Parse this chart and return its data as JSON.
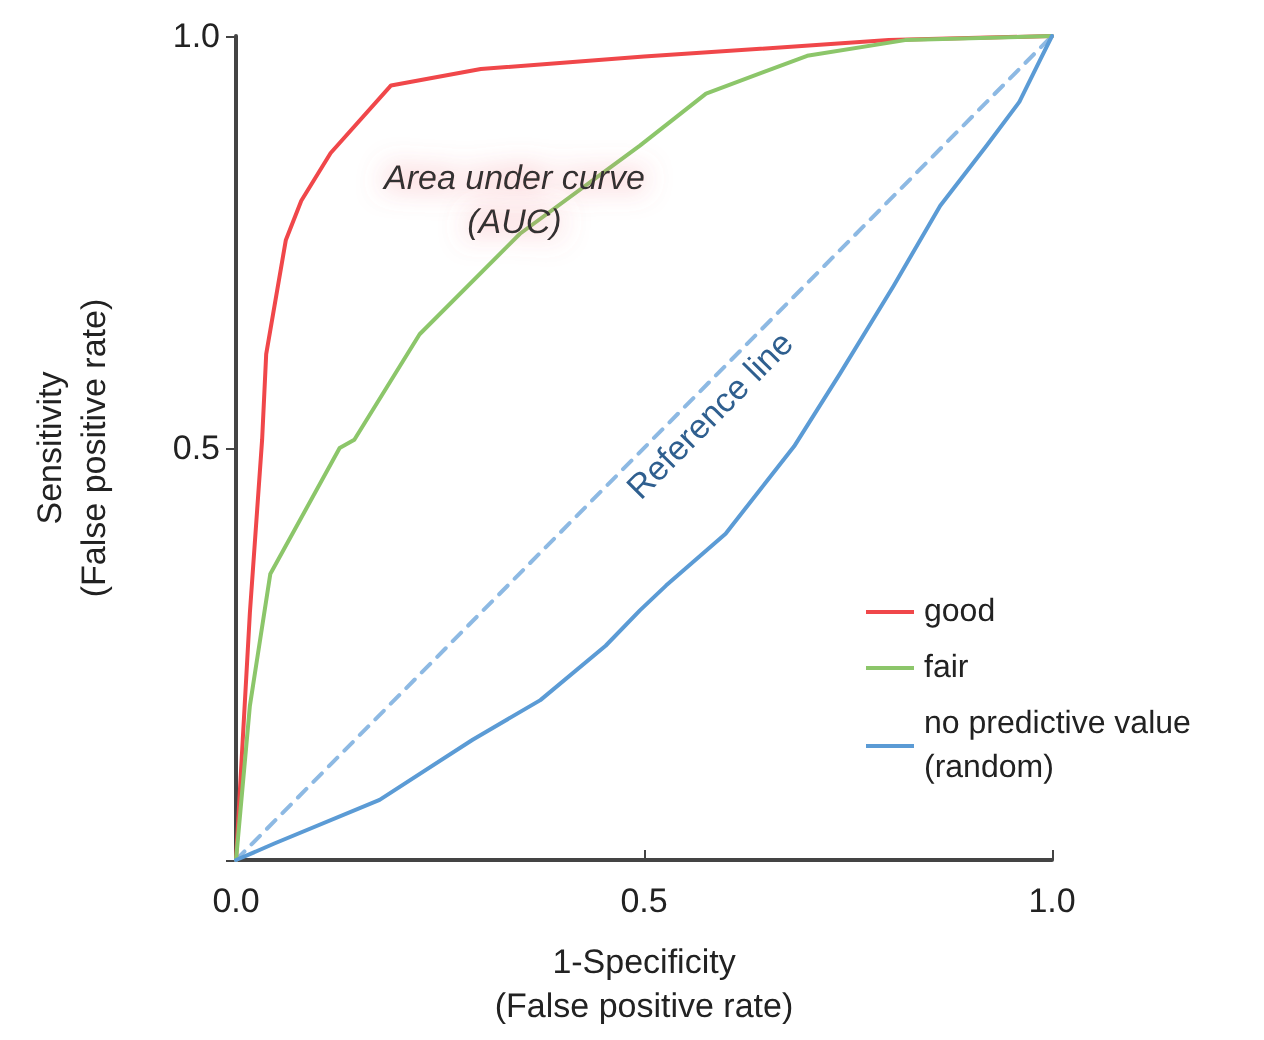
{
  "chart_data": {
    "type": "line",
    "xlabel": "1-Specificity\n(False positive rate)",
    "ylabel": "Sensitivity\n(False positive rate)",
    "xlim": [
      0,
      1
    ],
    "ylim": [
      0,
      1
    ],
    "xticks": [
      {
        "value": 0,
        "label": "0.0"
      },
      0.5,
      {
        "value": 1,
        "label": "1.0"
      }
    ],
    "yticks": [
      {
        "value": 0,
        "label": null
      },
      0.5,
      {
        "value": 1,
        "label": "1.0"
      }
    ],
    "marker": "none",
    "legend": "bottom right",
    "grid": false,
    "annotations": [
      "Area under curve\n(AUC)",
      "Reference line"
    ],
    "series": [
      {
        "name": "good",
        "color": "#f0474a",
        "line_style": "solid",
        "x": [
          0,
          0.017,
          0.032,
          0.037,
          0.061,
          0.08,
          0.116,
          0.19,
          0.3,
          0.5,
          0.8,
          1
        ],
        "values": [
          0,
          0.3,
          0.51,
          0.614,
          0.752,
          0.8,
          0.858,
          0.94,
          0.96,
          0.975,
          0.995,
          1
        ]
      },
      {
        "name": "fair",
        "color": "#8cc66a",
        "line_style": "solid",
        "x": [
          0,
          0.017,
          0.042,
          0.127,
          0.145,
          0.225,
          0.348,
          0.495,
          0.576,
          0.7,
          0.82,
          1
        ],
        "values": [
          0,
          0.187,
          0.347,
          0.5,
          0.51,
          0.638,
          0.76,
          0.867,
          0.93,
          0.976,
          0.995,
          1
        ]
      },
      {
        "name": "no predictive value (random)",
        "color": "#5b9bd5",
        "line_style": "solid",
        "x": [
          0,
          0.012,
          0.047,
          0.176,
          0.29,
          0.373,
          0.453,
          0.495,
          0.527,
          0.6,
          0.684,
          0.74,
          0.806,
          0.863,
          0.92,
          0.96,
          0.985,
          1
        ],
        "values": [
          0,
          0.005,
          0.02,
          0.073,
          0.146,
          0.194,
          0.26,
          0.303,
          0.333,
          0.396,
          0.502,
          0.59,
          0.697,
          0.794,
          0.867,
          0.92,
          0.97,
          1
        ]
      },
      {
        "color": "#8db9e3",
        "line_style": "dashed",
        "x": [
          0,
          1
        ],
        "values": [
          0,
          1
        ]
      }
    ]
  }
}
